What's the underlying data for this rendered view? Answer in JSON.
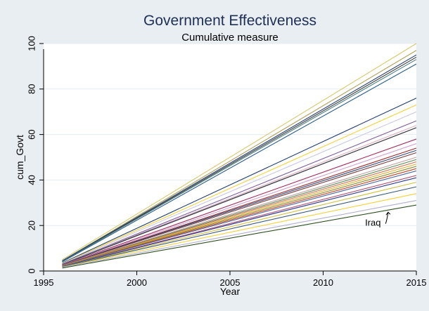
{
  "chart_data": {
    "type": "line",
    "title": "Government Effectiveness",
    "subtitle": "Cumulative measure",
    "xlabel": "Year",
    "ylabel": "cum_Govt",
    "xlim": [
      1995,
      2015
    ],
    "ylim": [
      0,
      100
    ],
    "xticks": [
      1995,
      2000,
      2005,
      2010,
      2015
    ],
    "yticks": [
      0,
      20,
      40,
      60,
      80,
      100
    ],
    "grid": true,
    "legend": "none",
    "annotation": {
      "text": "Iraq",
      "x": 2013.2,
      "y": 22,
      "arrow_to": [
        2013.6,
        24
      ]
    },
    "series": [
      {
        "color": "#d4c96a",
        "values": [
          5,
          100
        ]
      },
      {
        "color": "#b0a05a",
        "values": [
          4.5,
          97
        ]
      },
      {
        "color": "#1f3a6b",
        "values": [
          4.5,
          95
        ]
      },
      {
        "color": "#3a3a3a",
        "values": [
          4.3,
          94
        ]
      },
      {
        "color": "#4a7f7f",
        "values": [
          4.2,
          93
        ]
      },
      {
        "color": "#2b5d8a",
        "values": [
          4,
          91
        ]
      },
      {
        "color": "#1b3a6e",
        "values": [
          3.5,
          76
        ]
      },
      {
        "color": "#f2d13a",
        "values": [
          3.3,
          73
        ]
      },
      {
        "color": "#c9c9e8",
        "values": [
          3.2,
          70
        ]
      },
      {
        "color": "#7a5c9c",
        "values": [
          3,
          66
        ]
      },
      {
        "color": "#e0b0c0",
        "values": [
          3,
          64
        ]
      },
      {
        "color": "#6b6b9a",
        "values": [
          3,
          63
        ]
      },
      {
        "color": "#3a3a3a",
        "values": [
          2.8,
          63
        ]
      },
      {
        "color": "#a03060",
        "values": [
          2.7,
          58
        ]
      },
      {
        "color": "#d0a0d0",
        "values": [
          2.6,
          56
        ]
      },
      {
        "color": "#9a2a2a",
        "values": [
          2.5,
          54
        ]
      },
      {
        "color": "#2a4a7a",
        "values": [
          2.5,
          53
        ]
      },
      {
        "color": "#7a3a3a",
        "values": [
          2.4,
          52
        ]
      },
      {
        "color": "#c0a0a0",
        "values": [
          2.3,
          50
        ]
      },
      {
        "color": "#5a8a5a",
        "values": [
          2.2,
          49
        ]
      },
      {
        "color": "#d07050",
        "values": [
          2.2,
          48
        ]
      },
      {
        "color": "#e0b030",
        "values": [
          2.1,
          47
        ]
      },
      {
        "color": "#8a8a30",
        "values": [
          2.1,
          46
        ]
      },
      {
        "color": "#c04020",
        "values": [
          2,
          45
        ]
      },
      {
        "color": "#4a6aa0",
        "values": [
          2,
          44
        ]
      },
      {
        "color": "#b05070",
        "values": [
          1.9,
          42
        ]
      },
      {
        "color": "#2a3a8a",
        "values": [
          1.9,
          41
        ]
      },
      {
        "color": "#d0c040",
        "values": [
          1.8,
          39
        ]
      },
      {
        "color": "#3a5a7a",
        "values": [
          1.8,
          37
        ]
      },
      {
        "color": "#f2d13a",
        "values": [
          1.7,
          34
        ]
      },
      {
        "color": "#b0b0d0",
        "values": [
          1.6,
          31
        ]
      },
      {
        "color": "#2f4f1f",
        "values": [
          1.3,
          29
        ]
      }
    ],
    "x": [
      1996,
      2015
    ]
  }
}
